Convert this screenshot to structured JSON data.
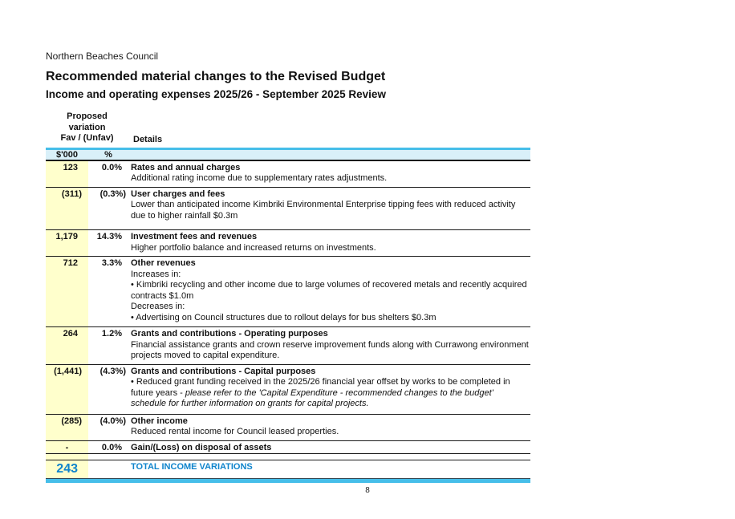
{
  "colors": {
    "accent_cyan": "#46BEE9",
    "band_fill": "#D9F0F9",
    "highlight_yellow": "#FFFFCC",
    "total_blue": "#0F84CC",
    "rule_dark": "#1A1A1A"
  },
  "page": {
    "org": "Northern Beaches Council",
    "title": "Recommended material changes to the Revised Budget",
    "subtitle": "Income and operating expenses 2025/26 - September 2025 Review",
    "page_number": "8"
  },
  "table": {
    "header": {
      "variation_line1": "Proposed",
      "variation_line2": "variation",
      "variation_line3": "Fav / (Unfav)",
      "details_label": "Details",
      "unit_label": "$'000",
      "pct_label": "%"
    },
    "rows": [
      {
        "amount": "123",
        "pct": "0.0%",
        "title": "Rates and annual charges",
        "body": [
          [
            {
              "t": "Additional rating income due to supplementary rates adjustments."
            }
          ]
        ]
      },
      {
        "amount": "(311)",
        "pct": "(0.3%)",
        "title": "User charges and fees",
        "body": [
          [
            {
              "t": "Lower than anticipated income Kimbriki Environmental Enterprise tipping fees with reduced activity due to higher rainfall $0.3m"
            }
          ]
        ]
      },
      {
        "amount": "1,179",
        "pct": "14.3%",
        "title": "Investment fees and revenues",
        "body": [
          [
            {
              "t": "Higher portfolio balance and increased returns on investments."
            }
          ]
        ]
      },
      {
        "amount": "712",
        "pct": "3.3%",
        "title": "Other revenues",
        "body": [
          [
            {
              "t": "Increases in:"
            }
          ],
          [
            {
              "t": "• Kimbriki recycling and other income due to large volumes of recovered metals and recently acquired contracts $1.0m"
            }
          ],
          [
            {
              "t": "Decreases in:"
            }
          ],
          [
            {
              "t": "• Advertising on Council structures due to rollout delays for bus shelters $0.3m"
            }
          ]
        ]
      },
      {
        "amount": "264",
        "pct": "1.2%",
        "title": "Grants and contributions - Operating purposes",
        "body": [
          [
            {
              "t": "Financial assistance grants and crown reserve improvement funds along with Currawong environment projects moved to capital expenditure."
            }
          ]
        ]
      },
      {
        "amount": "(1,441)",
        "pct": "(4.3%)",
        "title": "Grants and contributions - Capital purposes",
        "body": [
          [
            {
              "t": "• Reduced grant funding received in the 2025/26 financial year offset by works to be completed in future years - "
            },
            {
              "t": "please refer to the 'Capital Expenditure  - recommended changes to the budget' schedule for further information on grants for capital projects.",
              "i": true
            }
          ]
        ]
      },
      {
        "amount": "(285)",
        "pct": "(4.0%)",
        "title": "Other income",
        "body": [
          [
            {
              "t": "Reduced rental income for Council leased properties."
            }
          ]
        ]
      },
      {
        "amount": "-",
        "pct": "0.0%",
        "title": "Gain/(Loss) on disposal of assets",
        "body": []
      }
    ],
    "total": {
      "amount": "243",
      "label": "TOTAL INCOME VARIATIONS"
    }
  }
}
